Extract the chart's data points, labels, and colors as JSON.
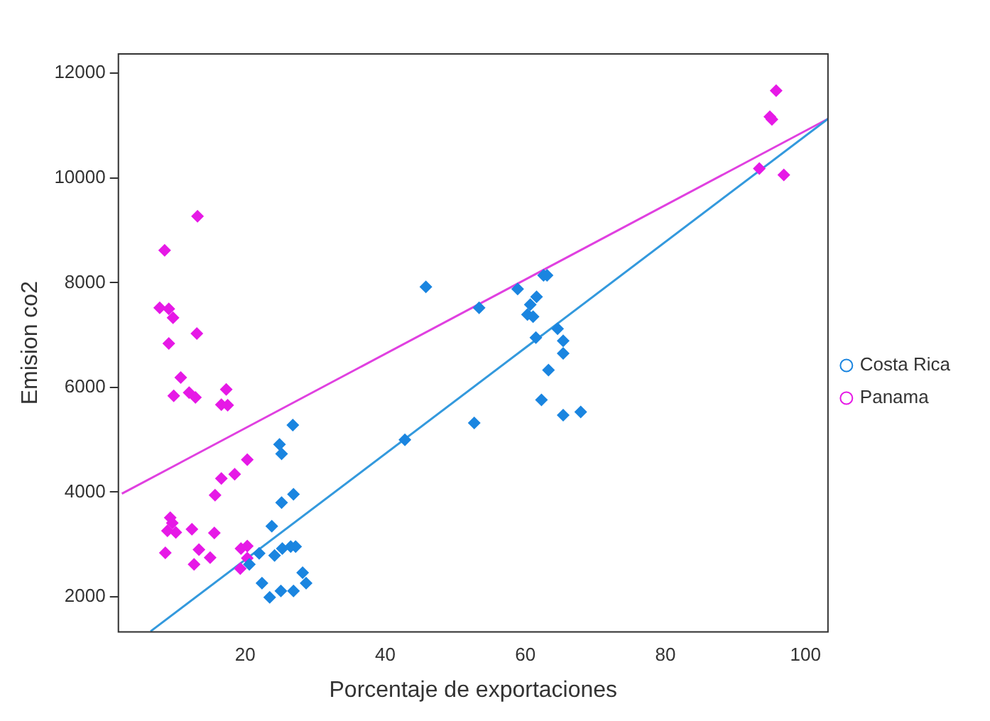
{
  "chart_data": {
    "type": "scatter",
    "xlabel": "Porcentaje de exportaciones",
    "ylabel": "Emision co2",
    "xlim": [
      1.9,
      103.2
    ],
    "ylim": [
      1330,
      12370
    ],
    "xticks": [
      20,
      40,
      60,
      80,
      100
    ],
    "yticks": [
      2000,
      4000,
      6000,
      8000,
      10000,
      12000
    ],
    "grid": false,
    "legend": "right",
    "marker": "diamond",
    "series": [
      {
        "name": "Costa Rica",
        "color": "#1a85e0",
        "x": [
          45.8,
          53.4,
          52.7,
          42.8,
          58.9,
          62.6,
          63.1,
          61.6,
          60.7,
          60.3,
          61.1,
          61.5,
          64.6,
          65.4,
          65.4,
          63.3,
          62.3,
          65.4,
          67.9,
          26.8,
          24.9,
          25.2,
          26.9,
          25.2,
          23.8,
          22,
          20.6,
          24.2,
          25.3,
          26.5,
          27.2,
          28.2,
          28.7,
          22.4,
          23.5,
          25.1,
          26.9
        ],
        "values": [
          7920,
          7520,
          5320,
          5000,
          7880,
          8140,
          8140,
          7730,
          7580,
          7390,
          7350,
          6950,
          7120,
          6890,
          6650,
          6330,
          5760,
          5470,
          5530,
          5280,
          4910,
          4730,
          3960,
          3800,
          3350,
          2830,
          2620,
          2790,
          2920,
          2960,
          2960,
          2460,
          2260,
          2260,
          1990,
          2110,
          2110
        ]
      },
      {
        "name": "Panama",
        "color": "#e619e6",
        "x": [
          8.5,
          7.8,
          9.1,
          9.7,
          9.1,
          13.2,
          13.1,
          10.8,
          9.8,
          12,
          12.9,
          17.3,
          16.6,
          17.5,
          20.3,
          18.5,
          16.6,
          15.7,
          9.3,
          9.6,
          8.9,
          10.1,
          8.6,
          12.4,
          15.6,
          13.4,
          12.7,
          15,
          19.4,
          20.3,
          19.3,
          20.3,
          95.8,
          94.9,
          95.2,
          93.4,
          96.9
        ],
        "values": [
          8620,
          7520,
          7500,
          7330,
          6840,
          9270,
          7030,
          6190,
          5840,
          5900,
          5810,
          5960,
          5670,
          5660,
          4620,
          4340,
          4260,
          3940,
          3510,
          3410,
          3260,
          3230,
          2840,
          3290,
          3220,
          2900,
          2620,
          2750,
          2920,
          2970,
          2540,
          2740,
          11670,
          11170,
          11120,
          10180,
          10060
        ]
      },
      {
        "type": "line",
        "marker": "none",
        "color": "#3399dd",
        "x": [
          6.5,
          103.2
        ],
        "values": [
          1340,
          11130
        ]
      },
      {
        "type": "line",
        "marker": "none",
        "color": "#e040e0",
        "x": [
          2.4,
          103.2
        ],
        "values": [
          3970,
          11130
        ]
      }
    ]
  }
}
